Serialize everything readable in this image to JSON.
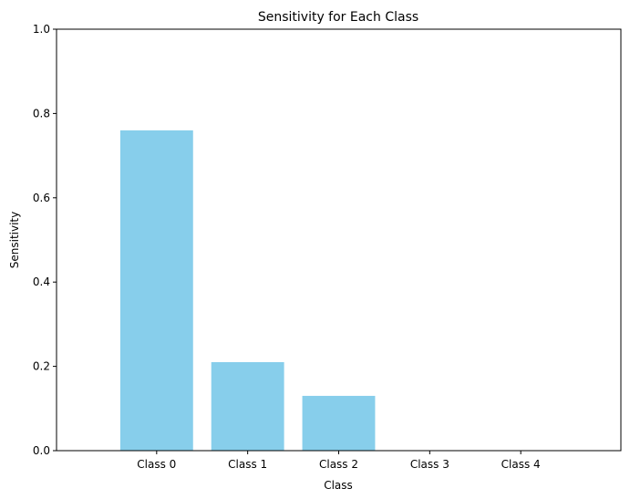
{
  "chart_data": {
    "type": "bar",
    "title": "Sensitivity for Each Class",
    "xlabel": "Class",
    "ylabel": "Sensitivity",
    "categories": [
      "Class 0",
      "Class 1",
      "Class 2",
      "Class 3",
      "Class 4"
    ],
    "values": [
      0.76,
      0.21,
      0.13,
      0.0,
      0.0
    ],
    "ylim": [
      0,
      1.0
    ],
    "yticks": [
      0.0,
      0.2,
      0.4,
      0.6,
      0.8,
      1.0
    ],
    "ytick_labels": [
      "0.0",
      "0.2",
      "0.4",
      "0.6",
      "0.8",
      "1.0"
    ],
    "grid": false,
    "bar_color": "#87CEEB",
    "axis_color": "#000000"
  }
}
